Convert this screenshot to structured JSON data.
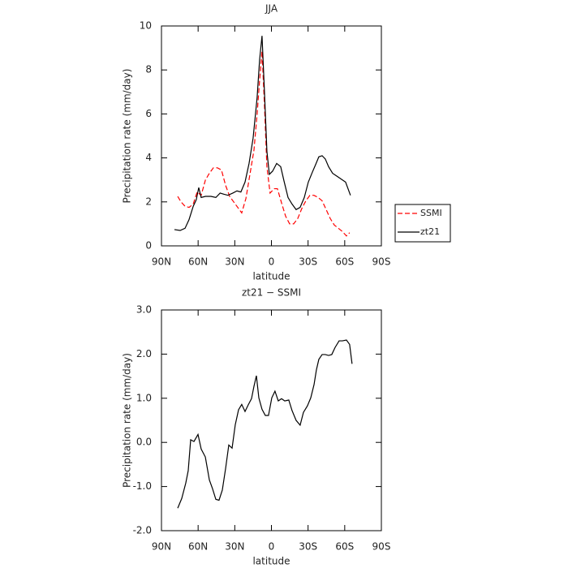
{
  "chart_data": [
    {
      "type": "line",
      "title": "JJA",
      "xlabel": "latitude",
      "ylabel": "Precipitation rate (mm/day)",
      "xlim": [
        90,
        -90
      ],
      "xticks": [
        {
          "value": 90,
          "label": "90N"
        },
        {
          "value": 60,
          "label": "60N"
        },
        {
          "value": 30,
          "label": "30N"
        },
        0,
        {
          "value": -30,
          "label": "30S"
        },
        {
          "value": -60,
          "label": "60S"
        },
        {
          "value": -90,
          "label": "90S"
        }
      ],
      "ylim": [
        0,
        10
      ],
      "yticks": [
        0,
        2,
        4,
        6,
        8,
        10
      ],
      "legend": "right",
      "series": [
        {
          "name": "SSMI",
          "color": "#ff0000",
          "linestyle": "dashed",
          "x": [
            76.7,
            74,
            70.7,
            67.4,
            64,
            60.8,
            57.5,
            54,
            50.8,
            47.5,
            44.2,
            40.9,
            37.5,
            34.2,
            30.9,
            27.6,
            24.3,
            20.9,
            17.6,
            14.3,
            11.7,
            9.7,
            7.7,
            5.7,
            3.7,
            1.1,
            -2.3,
            -4.9,
            -8.3,
            -11.6,
            -14.9,
            -18.2,
            -21.6,
            -24.9,
            -28.2,
            -31.5,
            -34.8,
            -38.2,
            -41.5,
            -44.8,
            -48.1,
            -51.4,
            -54.8,
            -58.1,
            -61.4,
            -64
          ],
          "values": [
            2.25,
            2.0,
            1.8,
            1.75,
            1.9,
            2.45,
            2.3,
            3.0,
            3.3,
            3.55,
            3.55,
            3.45,
            2.75,
            2.25,
            2.0,
            1.75,
            1.5,
            2.15,
            3.25,
            4.35,
            6.0,
            7.5,
            8.85,
            6.4,
            3.6,
            2.4,
            2.6,
            2.6,
            1.95,
            1.35,
            1.0,
            1.0,
            1.25,
            1.7,
            2.05,
            2.3,
            2.3,
            2.2,
            2.05,
            1.65,
            1.25,
            0.95,
            0.8,
            0.65,
            0.45,
            0.6
          ]
        },
        {
          "name": "zt21",
          "color": "#000000",
          "linestyle": "solid",
          "x": [
            79.4,
            74.7,
            70.7,
            67.4,
            64,
            61.5,
            59.5,
            57.5,
            54,
            49.5,
            45.5,
            42,
            39,
            35.6,
            31.6,
            28.2,
            25,
            21.6,
            18.3,
            15,
            11.7,
            9.7,
            7.7,
            5.7,
            3.7,
            1.7,
            -1,
            -4.3,
            -7.6,
            -10.3,
            -13.6,
            -16.9,
            -20.2,
            -23.5,
            -26.9,
            -30.2,
            -33.5,
            -36.2,
            -38.8,
            -41.5,
            -44.1,
            -46.8,
            -50.1,
            -54.1,
            -58.1,
            -60.7,
            -64.7
          ],
          "values": [
            0.74,
            0.7,
            0.8,
            1.2,
            1.8,
            2.1,
            2.65,
            2.2,
            2.25,
            2.25,
            2.2,
            2.4,
            2.35,
            2.3,
            2.4,
            2.5,
            2.45,
            2.9,
            3.75,
            4.9,
            6.75,
            8.45,
            9.55,
            7.0,
            4.3,
            3.25,
            3.4,
            3.75,
            3.6,
            2.95,
            2.2,
            1.9,
            1.65,
            1.75,
            2.2,
            2.9,
            3.35,
            3.7,
            4.05,
            4.1,
            3.95,
            3.6,
            3.3,
            3.15,
            3.0,
            2.9,
            2.3
          ]
        }
      ]
    },
    {
      "type": "line",
      "title": "zt21 − SSMI",
      "xlabel": "latitude",
      "ylabel": "Precipitation rate (mm/day)",
      "xlim": [
        90,
        -90
      ],
      "xticks": [
        {
          "value": 90,
          "label": "90N"
        },
        {
          "value": 60,
          "label": "60N"
        },
        {
          "value": 30,
          "label": "30N"
        },
        0,
        {
          "value": -30,
          "label": "30S"
        },
        {
          "value": -60,
          "label": "60S"
        },
        {
          "value": -90,
          "label": "90S"
        }
      ],
      "ylim": [
        -2,
        3
      ],
      "yticks": [
        {
          "value": -2,
          "label": "-2.0"
        },
        {
          "value": -1,
          "label": "-1.0"
        },
        {
          "value": 0,
          "label": "0.0"
        },
        {
          "value": 1,
          "label": "1.0"
        },
        {
          "value": 2,
          "label": "2.0"
        },
        {
          "value": 3,
          "label": "3.0"
        }
      ],
      "series": [
        {
          "color": "#000000",
          "linestyle": "solid",
          "x": [
            76.7,
            73.4,
            70.1,
            68.1,
            66.1,
            63.4,
            60.1,
            57.5,
            54.1,
            50.8,
            48.2,
            45.5,
            42.9,
            40.2,
            37.5,
            34.9,
            32.2,
            29.6,
            26.9,
            24.3,
            21.6,
            19,
            16.3,
            14.3,
            12.3,
            10.3,
            7.7,
            5,
            2.4,
            -0.3,
            -2.9,
            -5.6,
            -8.3,
            -10.9,
            -14.2,
            -16.9,
            -20.2,
            -23.5,
            -26.2,
            -29.5,
            -32.2,
            -34.9,
            -36.8,
            -38.8,
            -41.5,
            -44.1,
            -46.8,
            -49.4,
            -52.1,
            -55.4,
            -58.1,
            -61.4,
            -64,
            -66
          ],
          "values": [
            -1.49,
            -1.27,
            -0.92,
            -0.64,
            0.06,
            0.02,
            0.18,
            -0.15,
            -0.33,
            -0.85,
            -1.05,
            -1.29,
            -1.31,
            -1.08,
            -0.59,
            -0.06,
            -0.13,
            0.4,
            0.74,
            0.86,
            0.7,
            0.85,
            0.99,
            1.27,
            1.51,
            1.01,
            0.75,
            0.61,
            0.61,
            1.01,
            1.16,
            0.94,
            0.99,
            0.94,
            0.96,
            0.72,
            0.5,
            0.39,
            0.68,
            0.83,
            1.01,
            1.31,
            1.64,
            1.88,
            1.99,
            1.99,
            1.97,
            1.99,
            2.15,
            2.3,
            2.3,
            2.32,
            2.22,
            1.78
          ]
        }
      ]
    }
  ]
}
